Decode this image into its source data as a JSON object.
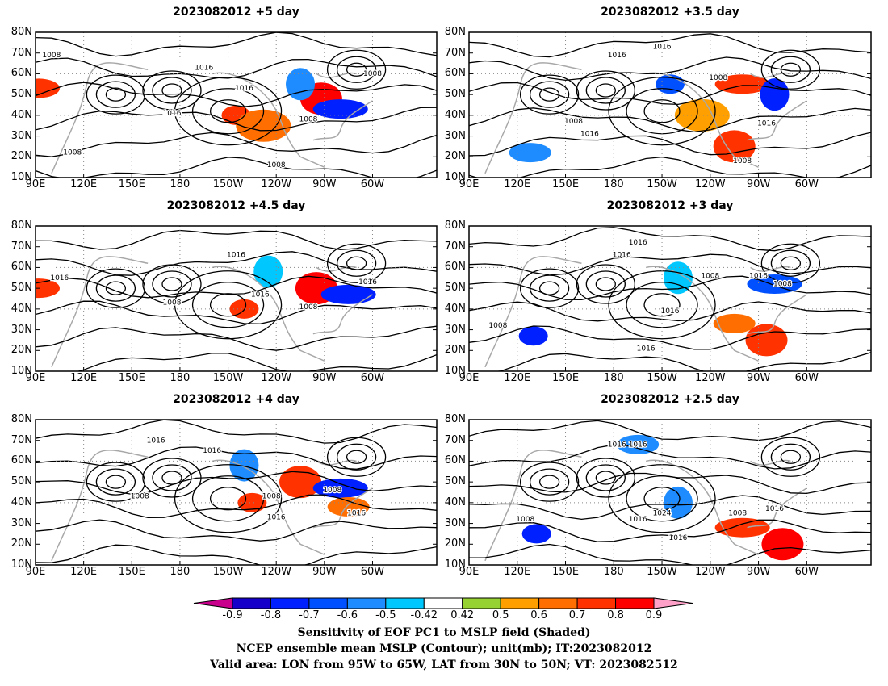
{
  "panels": [
    {
      "title": "2023082012 +5 day",
      "contour_labels": [
        "1008",
        "1016",
        "1016",
        "1016",
        "1008",
        "1008",
        "1008",
        "1008"
      ],
      "shading": [
        {
          "lon": -145,
          "lat": 40,
          "v": 0.7
        },
        {
          "lon": -92,
          "lat": 48,
          "v": 0.8
        },
        {
          "lon": -80,
          "lat": 43,
          "v": -0.8
        },
        {
          "lon": -105,
          "lat": 55,
          "v": -0.6
        },
        {
          "lon": 92,
          "lat": 53,
          "v": 0.7
        },
        {
          "lon": -128,
          "lat": 35,
          "v": 0.6
        }
      ]
    },
    {
      "title": "2023082012 +3.5 day",
      "contour_labels": [
        "1016",
        "1016",
        "1008",
        "1016",
        "1008",
        "1016",
        "1008"
      ],
      "shading": [
        {
          "lon": -145,
          "lat": 55,
          "v": -0.7
        },
        {
          "lon": -105,
          "lat": 25,
          "v": 0.7
        },
        {
          "lon": -100,
          "lat": 55,
          "v": 0.7
        },
        {
          "lon": -80,
          "lat": 50,
          "v": -0.8
        },
        {
          "lon": 128,
          "lat": 22,
          "v": -0.6
        },
        {
          "lon": -125,
          "lat": 40,
          "v": 0.5
        }
      ]
    },
    {
      "title": "2023082012 +4.5 day",
      "contour_labels": [
        "1016",
        "1016",
        "1008",
        "1016",
        "1008",
        "1016"
      ],
      "shading": [
        {
          "lon": -140,
          "lat": 40,
          "v": 0.7
        },
        {
          "lon": -95,
          "lat": 50,
          "v": 0.8
        },
        {
          "lon": -75,
          "lat": 47,
          "v": -0.8
        },
        {
          "lon": -125,
          "lat": 58,
          "v": -0.5
        },
        {
          "lon": 92,
          "lat": 50,
          "v": 0.7
        }
      ]
    },
    {
      "title": "2023082012 +3 day",
      "contour_labels": [
        "1016",
        "1016",
        "1008",
        "1016",
        "1016",
        "1008",
        "1016",
        "1008"
      ],
      "shading": [
        {
          "lon": 130,
          "lat": 27,
          "v": -0.8
        },
        {
          "lon": -85,
          "lat": 25,
          "v": 0.7
        },
        {
          "lon": -80,
          "lat": 52,
          "v": -0.7
        },
        {
          "lon": -140,
          "lat": 55,
          "v": -0.5
        },
        {
          "lon": -105,
          "lat": 33,
          "v": 0.6
        }
      ]
    },
    {
      "title": "2023082012 +4 day",
      "contour_labels": [
        "1016",
        "1016",
        "1008",
        "1008",
        "1016",
        "1008",
        "1016"
      ],
      "shading": [
        {
          "lon": -135,
          "lat": 40,
          "v": 0.7
        },
        {
          "lon": -105,
          "lat": 50,
          "v": 0.7
        },
        {
          "lon": -80,
          "lat": 47,
          "v": -0.8
        },
        {
          "lon": -140,
          "lat": 58,
          "v": -0.6
        },
        {
          "lon": -75,
          "lat": 38,
          "v": 0.6
        }
      ]
    },
    {
      "title": "2023082012 +2.5 day",
      "contour_labels": [
        "1016",
        "1016",
        "1016",
        "1024",
        "1016",
        "1008",
        "1008",
        "1016"
      ],
      "shading": [
        {
          "lon": 132,
          "lat": 25,
          "v": -0.8
        },
        {
          "lon": -75,
          "lat": 20,
          "v": 0.8
        },
        {
          "lon": -100,
          "lat": 28,
          "v": 0.7
        },
        {
          "lon": -140,
          "lat": 40,
          "v": -0.6
        },
        {
          "lon": -165,
          "lat": 68,
          "v": -0.6
        }
      ]
    }
  ],
  "lat_labels": [
    "80N",
    "70N",
    "60N",
    "50N",
    "40N",
    "30N",
    "20N",
    "10N"
  ],
  "lon_labels": [
    "90E",
    "120E",
    "150E",
    "180",
    "150W",
    "120W",
    "90W",
    "60W"
  ],
  "colorbar": {
    "ticks": [
      "-0.9",
      "-0.8",
      "-0.7",
      "-0.6",
      "-0.5",
      "-0.42",
      "0.42",
      "0.5",
      "0.6",
      "0.7",
      "0.8",
      "0.9"
    ],
    "colors": [
      "#1400c8",
      "#0020ff",
      "#0050ff",
      "#1e8cff",
      "#00c8ff",
      "#ffffff",
      "#96d232",
      "#ffa000",
      "#ff6e00",
      "#ff3200",
      "#ff0000"
    ],
    "under_color": "#c8008c",
    "over_color": "#ffa0c8"
  },
  "caption": [
    "Sensitivity of EOF PC1 to MSLP field (Shaded)",
    "NCEP ensemble mean MSLP (Contour); unit(mb); IT:2023082012",
    "Valid area: LON from 95W to 65W, LAT from 30N to 50N; VT: 2023082512"
  ]
}
